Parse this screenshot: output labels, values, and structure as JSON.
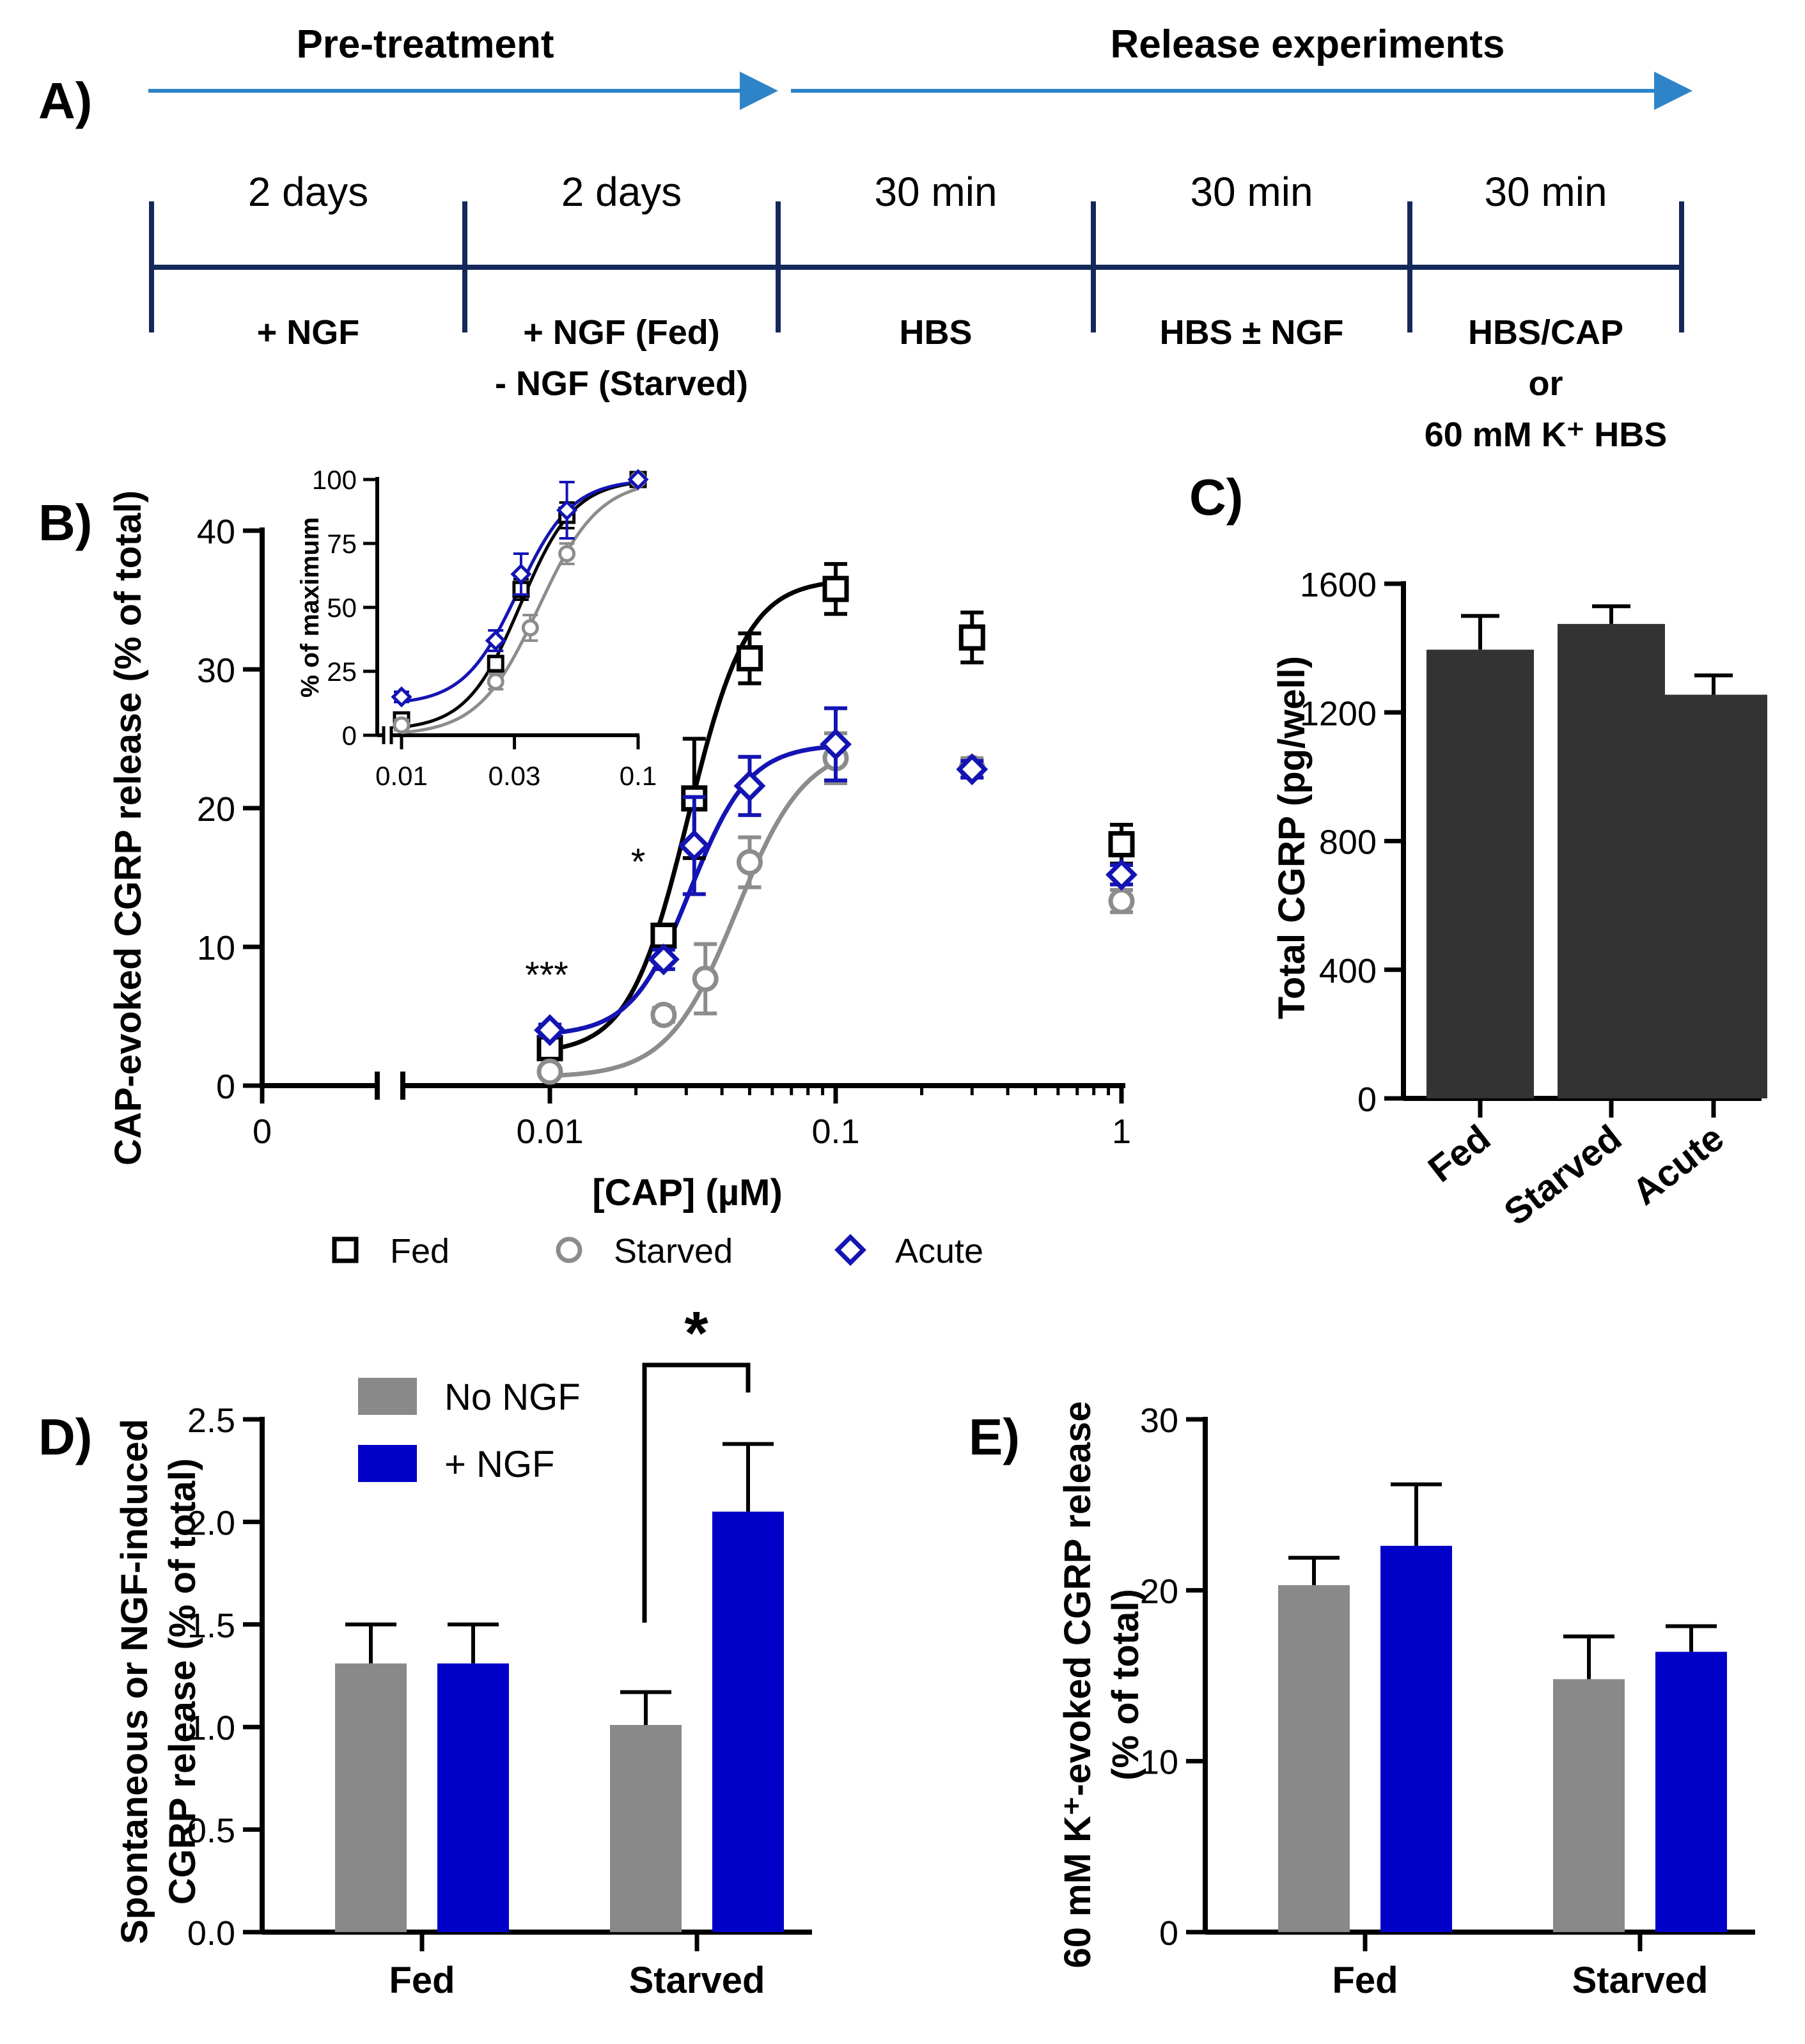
{
  "colors": {
    "axis": "#000000",
    "fed": "#000000",
    "starved": "#8c8c8c",
    "acute": "#1414b4",
    "bar_dark": "#333333",
    "bar_gray": "#898989",
    "bar_blue": "#0000c8",
    "timeline": "#14285a",
    "arrow": "#2f84c8"
  },
  "panelA": {
    "panel_label": "A)",
    "phase_pretreatment": "Pre-treatment",
    "phase_release": "Release experiments",
    "segments": [
      {
        "duration": "2 days",
        "lines": [
          "+ NGF"
        ]
      },
      {
        "duration": "2 days",
        "lines": [
          "+ NGF (Fed)",
          "- NGF (Starved)"
        ]
      },
      {
        "duration": "30 min",
        "lines": [
          "HBS"
        ]
      },
      {
        "duration": "30 min",
        "lines": [
          "HBS ± NGF"
        ]
      },
      {
        "duration": "30 min",
        "lines": [
          "HBS/CAP",
          "or",
          "60 mM K⁺ HBS"
        ]
      }
    ]
  },
  "panels": {
    "B": "B)",
    "C": "C)",
    "D": "D)",
    "E": "E)"
  },
  "chart_data": [
    {
      "id": "B",
      "type": "scatter",
      "xlabel": "[CAP] (µM)",
      "ylabel": "CAP-evoked CGRP release (% of total)",
      "x_scale": "log",
      "x_ticks": [
        "0",
        "0.01",
        "0.1",
        "1"
      ],
      "y_ticks": [
        0,
        10,
        20,
        30,
        40
      ],
      "ylim": [
        0,
        40
      ],
      "fit": "sigmoidal curves through points up to 0.1 µM",
      "series": [
        {
          "name": "Fed",
          "marker": "square",
          "x": [
            0.01,
            0.025,
            0.032,
            0.05,
            0.1,
            0.3,
            1
          ],
          "y": [
            2.7,
            10.8,
            20.7,
            30.8,
            35.8,
            32.3,
            17.4
          ],
          "err": [
            0.6,
            0.8,
            4.3,
            1.8,
            1.8,
            1.8,
            1.4
          ]
        },
        {
          "name": "Starved",
          "marker": "circle",
          "x": [
            0.01,
            0.025,
            0.035,
            0.05,
            0.1,
            0.3,
            1
          ],
          "y": [
            1.0,
            5.1,
            7.7,
            16.1,
            23.6,
            22.9,
            13.3
          ],
          "err": [
            0.3,
            0.5,
            2.5,
            1.8,
            1.8,
            0.7,
            0.8
          ]
        },
        {
          "name": "Acute",
          "marker": "diamond",
          "x": [
            0.01,
            0.025,
            0.032,
            0.05,
            0.1,
            0.3,
            1
          ],
          "y": [
            4.0,
            9.1,
            17.3,
            21.6,
            24.6,
            22.8,
            15.2
          ],
          "err": [
            0.4,
            0.7,
            3.5,
            2.1,
            2.6,
            0.6,
            0.7
          ]
        }
      ],
      "annotations": [
        "***",
        "*"
      ],
      "legend": "bottom"
    },
    {
      "id": "B-inset",
      "type": "line",
      "ylabel": "% of maximum",
      "x_scale": "log",
      "x_ticks": [
        "0.01",
        "0.03",
        "0.1"
      ],
      "y_ticks": [
        0,
        25,
        50,
        75,
        100
      ],
      "ylim": [
        0,
        100
      ],
      "series": [
        {
          "name": "Fed",
          "x": [
            0.01,
            0.025,
            0.032,
            0.05,
            0.1
          ],
          "y": [
            6,
            28,
            57,
            86,
            100
          ]
        },
        {
          "name": "Starved",
          "x": [
            0.01,
            0.025,
            0.035,
            0.05,
            0.1
          ],
          "y": [
            4,
            21,
            42,
            71,
            100
          ]
        },
        {
          "name": "Acute",
          "x": [
            0.01,
            0.025,
            0.032,
            0.05,
            0.1
          ],
          "y": [
            15,
            37,
            63,
            88,
            100
          ]
        }
      ]
    },
    {
      "id": "C",
      "type": "bar",
      "ylabel": "Total CGRP (pg/well)",
      "categories": [
        "Fed",
        "Starved",
        "Acute"
      ],
      "values": [
        1395,
        1475,
        1255
      ],
      "err": [
        105,
        55,
        60
      ],
      "y_ticks": [
        0,
        400,
        800,
        1200,
        1600
      ],
      "ylim": [
        0,
        1600
      ]
    },
    {
      "id": "D",
      "type": "bar",
      "ylabel_lines": [
        "Spontaneous or NGF-induced",
        "CGRP release (% of total)"
      ],
      "categories": [
        "Fed",
        "Starved"
      ],
      "series": [
        {
          "name": "No NGF",
          "values": [
            1.31,
            1.01
          ],
          "err": [
            0.19,
            0.16
          ]
        },
        {
          "name": "+ NGF",
          "values": [
            1.31,
            2.05
          ],
          "err": [
            0.19,
            0.33
          ]
        }
      ],
      "y_ticks": [
        "0.0",
        "0.5",
        "1.0",
        "1.5",
        "2.0",
        "2.5"
      ],
      "ylim": [
        0,
        2.5
      ],
      "significance": "*",
      "legend": "top-left"
    },
    {
      "id": "E",
      "type": "bar",
      "ylabel_lines": [
        "60 mM K⁺-evoked CGRP release",
        "(% of total)"
      ],
      "categories": [
        "Fed",
        "Starved"
      ],
      "series": [
        {
          "name": "No NGF",
          "values": [
            20.3,
            14.8
          ],
          "err": [
            1.6,
            2.5
          ]
        },
        {
          "name": "+ NGF",
          "values": [
            22.6,
            16.4
          ],
          "err": [
            3.6,
            1.5
          ]
        }
      ],
      "y_ticks": [
        0,
        10,
        20,
        30
      ],
      "ylim": [
        0,
        30
      ]
    }
  ]
}
